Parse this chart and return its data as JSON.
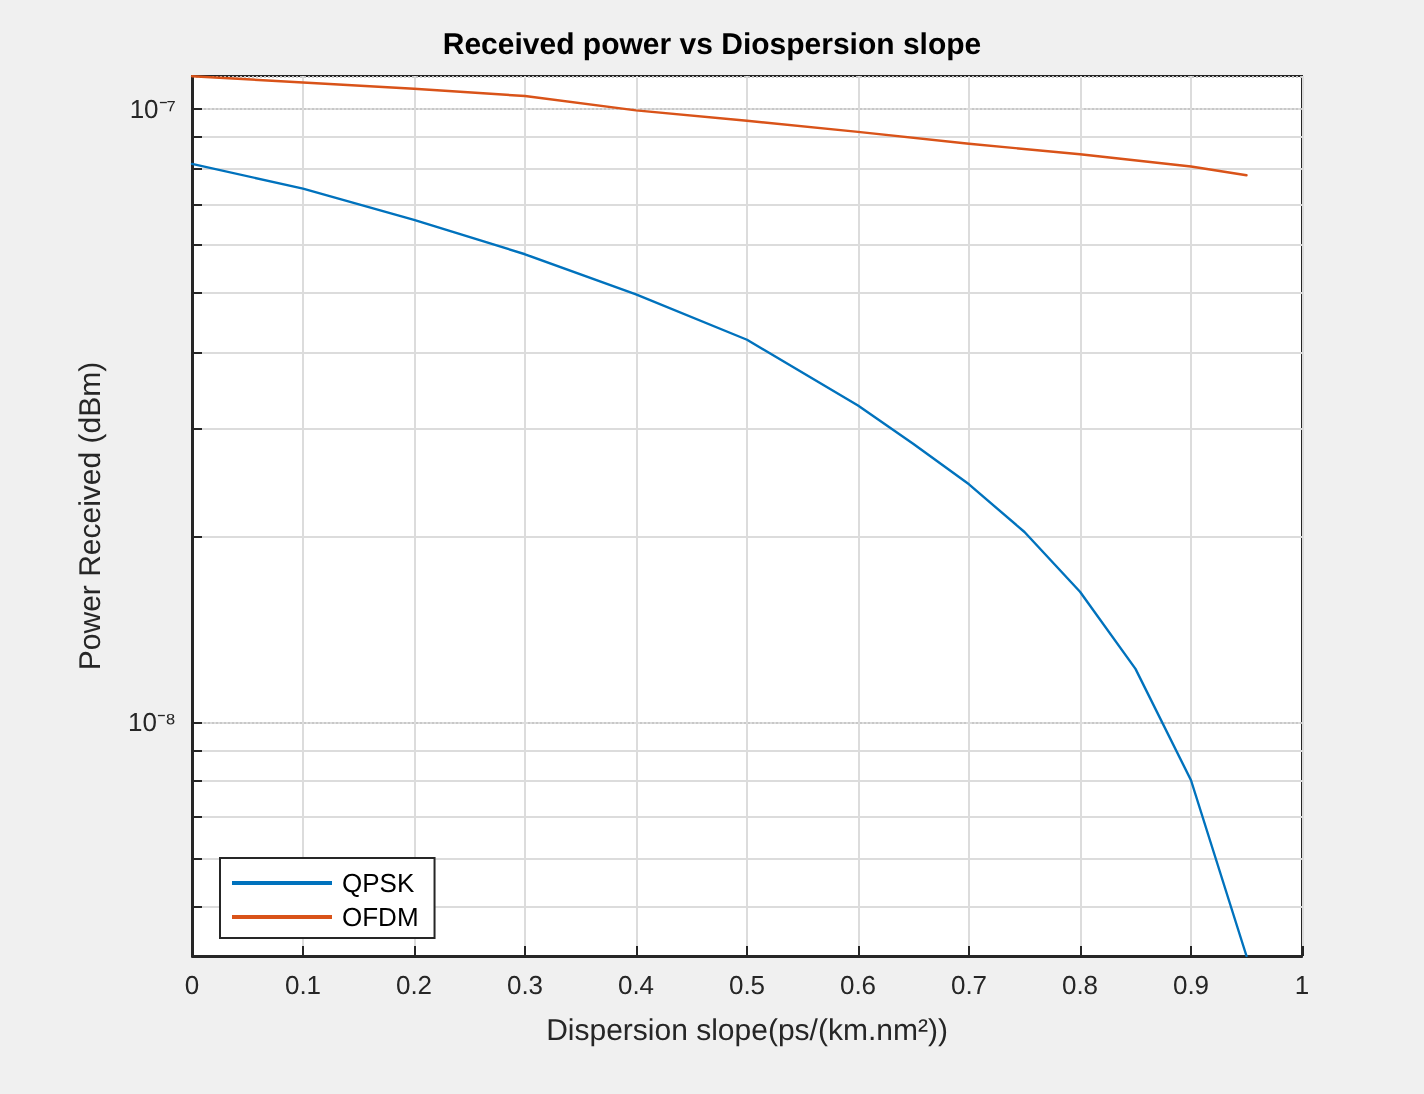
{
  "chart_data": {
    "type": "line",
    "title": "Received power vs Diospersion slope",
    "xlabel": "Dispersion slope(ps/(km.nm²))",
    "ylabel": "Power Received (dBm)",
    "x": [
      0,
      0.1,
      0.2,
      0.3,
      0.4,
      0.5,
      0.6,
      0.65,
      0.7,
      0.75,
      0.8,
      0.85,
      0.9,
      0.95
    ],
    "series": [
      {
        "name": "QPSK",
        "color": "#0072bd",
        "values": [
          8.13e-08,
          7.41e-08,
          6.59e-08,
          5.79e-08,
          4.98e-08,
          4.2e-08,
          3.28e-08,
          2.84e-08,
          2.44e-08,
          2.04e-08,
          1.63e-08,
          1.22e-08,
          8.03e-09,
          4.15e-09
        ]
      },
      {
        "name": "OFDM",
        "color": "#d95319",
        "values": [
          1.13e-07,
          1.104e-07,
          1.078e-07,
          1.049e-07,
          9.94e-08,
          9.56e-08,
          9.17e-08,
          null,
          8.77e-08,
          null,
          8.43e-08,
          null,
          8.05e-08,
          7.79e-08
        ]
      }
    ],
    "log": "y",
    "xlim": [
      0,
      1
    ],
    "xticks": [
      0,
      0.1,
      0.2,
      0.3,
      0.4,
      0.5,
      0.6,
      0.7,
      0.8,
      0.9,
      1
    ],
    "ylim": [
      4.15e-09,
      1.131e-07
    ],
    "yticks": [
      {
        "value": 5e-09,
        "label": null
      },
      {
        "value": 6e-09,
        "label": null
      },
      {
        "value": 7e-09,
        "label": null
      },
      {
        "value": 8e-09,
        "label": null
      },
      {
        "value": 9e-09,
        "label": null
      },
      {
        "value": 1e-08,
        "label": "10⁻⁸"
      },
      {
        "value": 2e-08,
        "label": null
      },
      {
        "value": 3e-08,
        "label": null
      },
      {
        "value": 4e-08,
        "label": null
      },
      {
        "value": 5e-08,
        "label": null
      },
      {
        "value": 6e-08,
        "label": null
      },
      {
        "value": 7e-08,
        "label": null
      },
      {
        "value": 8e-08,
        "label": null
      },
      {
        "value": 9e-08,
        "label": null
      },
      {
        "value": 1e-07,
        "label": "10⁻⁷"
      }
    ],
    "grid": true,
    "legend": "bottom left",
    "marker": "none",
    "line_style": "solid"
  }
}
